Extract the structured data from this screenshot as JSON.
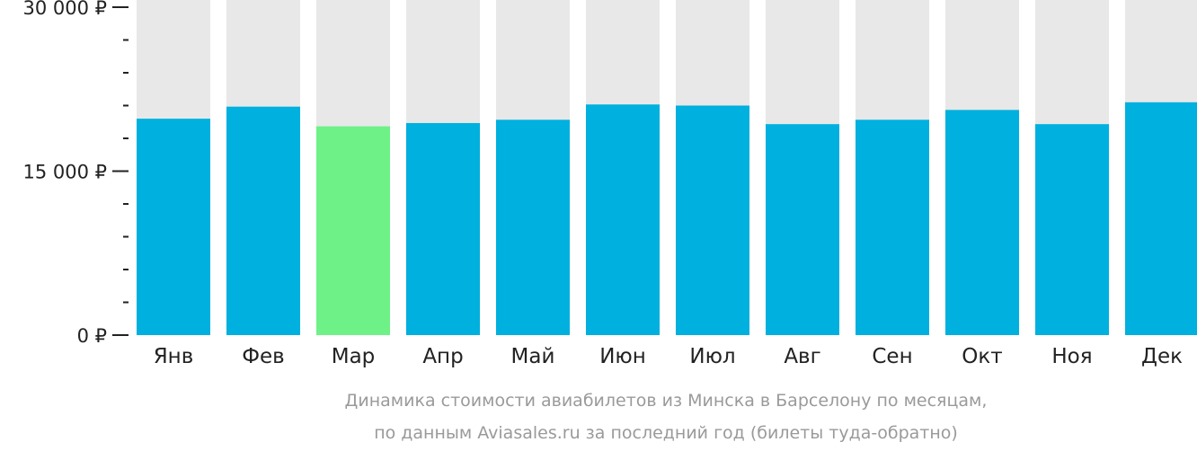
{
  "chart_data": {
    "type": "bar",
    "title": "",
    "xlabel": "",
    "ylabel": "",
    "categories": [
      "Янв",
      "Фев",
      "Мар",
      "Апр",
      "Май",
      "Июн",
      "Июл",
      "Авг",
      "Сен",
      "Окт",
      "Ноя",
      "Дек"
    ],
    "values": [
      19800,
      20900,
      19100,
      19400,
      19700,
      21100,
      21000,
      19300,
      19700,
      20600,
      19300,
      21300
    ],
    "ylim": [
      0,
      30000
    ],
    "yticks": [
      0,
      15000,
      30000
    ],
    "ytick_labels": [
      "0 ₽",
      "15 000 ₽",
      "30 000 ₽"
    ],
    "minor_ticks_per_interval": 4,
    "grid": false,
    "highlight_category": "Мар",
    "colors": {
      "bar": "#00b0de",
      "highlight": "#6ef287",
      "background": "#e8e8e8",
      "axis": "#222222",
      "caption": "#9a9a9a"
    },
    "caption": [
      "Динамика стоимости авиабилетов из Минска в Барселону по месяцам,",
      "по данным Aviasales.ru за последний год (билеты туда-обратно)"
    ]
  }
}
